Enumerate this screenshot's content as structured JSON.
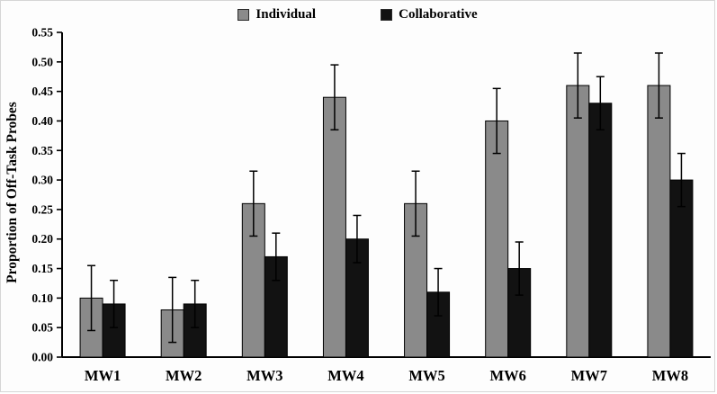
{
  "chart_data": {
    "type": "bar",
    "title": "",
    "categories": [
      "MW1",
      "MW2",
      "MW3",
      "MW4",
      "MW5",
      "MW6",
      "MW7",
      "MW8"
    ],
    "series": [
      {
        "name": "Individual",
        "color": "#8a8a8a",
        "values": [
          0.1,
          0.08,
          0.26,
          0.44,
          0.26,
          0.4,
          0.46,
          0.46
        ],
        "errors": [
          0.055,
          0.055,
          0.055,
          0.055,
          0.055,
          0.055,
          0.055,
          0.055
        ]
      },
      {
        "name": "Collaborative",
        "color": "#121212",
        "values": [
          0.09,
          0.09,
          0.17,
          0.2,
          0.11,
          0.15,
          0.43,
          0.3
        ],
        "errors": [
          0.04,
          0.04,
          0.04,
          0.04,
          0.04,
          0.045,
          0.045,
          0.045
        ]
      }
    ],
    "xlabel": "",
    "ylabel": "Proportion of Off-Task Probes",
    "ylim": [
      0,
      0.55
    ],
    "ytick_step": 0.05,
    "ytick_decimals": 2,
    "grid": false,
    "legend_position": "top",
    "error_bars": true,
    "axis_color": "#000000",
    "background_color": "#fdfdfd"
  }
}
